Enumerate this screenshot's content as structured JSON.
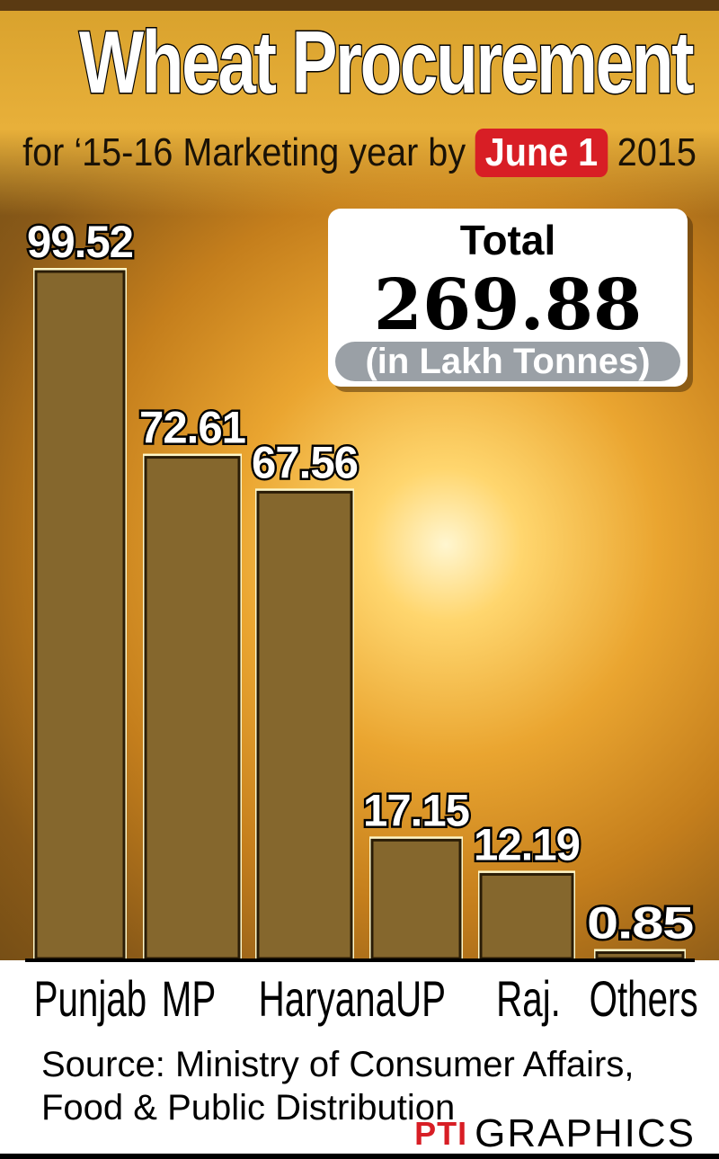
{
  "title": "Wheat Procurement",
  "subtitle": {
    "prefix": "for ‘15-16 Marketing year by",
    "highlight": "June 1",
    "suffix": "2015"
  },
  "total": {
    "label": "Total",
    "value": "269.88",
    "unit": "(in Lakh Tonnes)"
  },
  "colors": {
    "bar_fill": "#85672d",
    "bar_edge": "#fff7c8",
    "highlight": "#d81e25",
    "unit_pill": "#9aa0a6"
  },
  "chart_data": {
    "type": "bar",
    "title": "Wheat Procurement",
    "categories": [
      "Punjab",
      "MP",
      "Haryana",
      "UP",
      "Raj.",
      "Others"
    ],
    "values": [
      99.52,
      72.61,
      67.56,
      17.15,
      12.19,
      0.85
    ],
    "value_labels": [
      "99.52",
      "72.61",
      "67.56",
      "17.15",
      "12.19",
      "0.85"
    ],
    "ylim": [
      0,
      99.52
    ],
    "grid": false
  },
  "source": {
    "line1": "Source: Ministry of Consumer Affairs,",
    "line2": "Food & Public Distribution"
  },
  "credit": {
    "logo": "PTI",
    "text": "GRAPHICS"
  }
}
